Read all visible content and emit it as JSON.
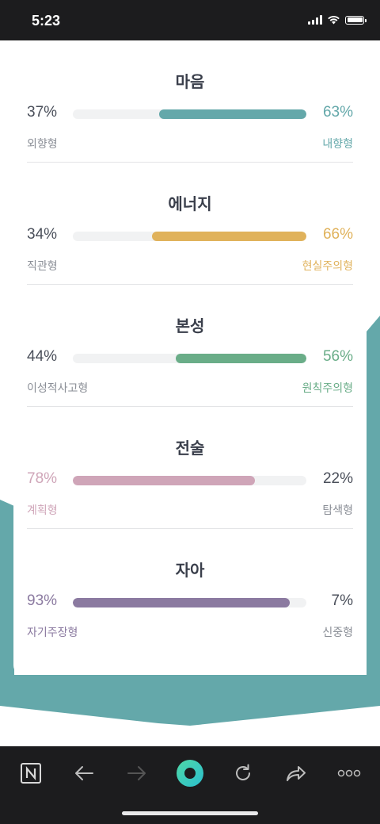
{
  "status": {
    "time": "5:23"
  },
  "colors": {
    "teal": "#64a8aa",
    "gold": "#e0b25b",
    "green": "#6aad88",
    "pink": "#cfa5b8",
    "purple": "#8b7aa0",
    "muted": "#8a8e96",
    "dark_text": "#3a3f4b"
  },
  "sections": [
    {
      "title": "마음",
      "left_pct": "37%",
      "right_pct": "63%",
      "left_label": "외향형",
      "right_label": "내향형",
      "value_left": 37,
      "value_right": 63,
      "dominant": "right",
      "color": "#64a8aa"
    },
    {
      "title": "에너지",
      "left_pct": "34%",
      "right_pct": "66%",
      "left_label": "직관형",
      "right_label": "현실주의형",
      "value_left": 34,
      "value_right": 66,
      "dominant": "right",
      "color": "#e0b25b"
    },
    {
      "title": "본성",
      "left_pct": "44%",
      "right_pct": "56%",
      "left_label": "이성적사고형",
      "right_label": "원칙주의형",
      "value_left": 44,
      "value_right": 56,
      "dominant": "right",
      "color": "#6aad88"
    },
    {
      "title": "전술",
      "left_pct": "78%",
      "right_pct": "22%",
      "left_label": "계획형",
      "right_label": "탐색형",
      "value_left": 78,
      "value_right": 22,
      "dominant": "left",
      "color": "#cfa5b8"
    },
    {
      "title": "자아",
      "left_pct": "93%",
      "right_pct": "7%",
      "left_label": "자기주장형",
      "right_label": "신중형",
      "value_left": 93,
      "value_right": 7,
      "dominant": "left",
      "color": "#8b7aa0"
    }
  ],
  "toolbar": {
    "icons": [
      "notion-icon",
      "back-arrow-icon",
      "forward-arrow-icon",
      "home-ring-icon",
      "reload-icon",
      "share-icon",
      "more-icon"
    ]
  }
}
